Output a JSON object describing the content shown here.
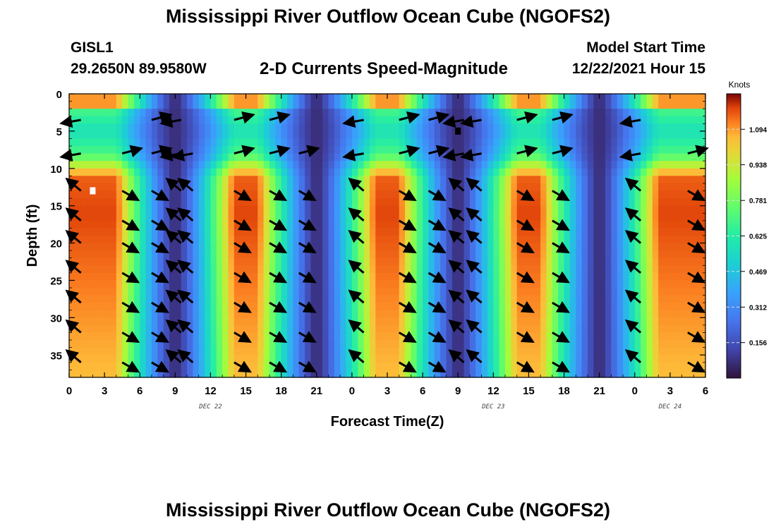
{
  "header": {
    "title": "Mississippi River Outflow Ocean Cube (NGOFS2)",
    "station": "GISL1",
    "coords": "29.2650N  89.9580W",
    "subtitle": "2-D Currents Speed-Magnitude",
    "start_label": "Model Start Time",
    "start_value": "12/22/2021 Hour 15"
  },
  "footer": {
    "title": "Mississippi River Outflow Ocean Cube (NGOFS2)"
  },
  "chart_data": {
    "type": "heatmap",
    "xlabel": "Forecast Time(Z)",
    "ylabel": "Depth (ft)",
    "x_range_hours": [
      0,
      54
    ],
    "y_range_ft": [
      0,
      38
    ],
    "y_reversed": true,
    "x_tick_labels": [
      "0",
      "3",
      "6",
      "9",
      "12",
      "15",
      "18",
      "21",
      "0",
      "3",
      "6",
      "9",
      "12",
      "15",
      "18",
      "21",
      "0",
      "3",
      "6"
    ],
    "y_ticks": [
      0,
      5,
      10,
      15,
      20,
      25,
      30,
      35
    ],
    "date_labels": [
      {
        "text": "DEC 22",
        "at_tick": 4
      },
      {
        "text": "DEC 23",
        "at_tick": 12
      },
      {
        "text": "DEC 24",
        "at_tick": 17
      }
    ],
    "colorbar": {
      "units": "Knots",
      "min": 0.0,
      "max": 1.25,
      "ticks": [
        0.156,
        0.312,
        0.469,
        0.625,
        0.781,
        0.938,
        1.094
      ],
      "tick_labels": [
        "0.156",
        "0.312",
        "0.469",
        "0.625",
        "0.781",
        "0.938",
        "1.094"
      ]
    },
    "slack_hours": [
      9,
      21,
      33,
      45
    ],
    "peak_hours": [
      2,
      15,
      27,
      39,
      52
    ],
    "markers": [
      {
        "hour": 2.0,
        "depth": 13.0,
        "color": "#ffffff"
      },
      {
        "hour": 33.0,
        "depth": 5.0,
        "color": "#000000"
      }
    ]
  }
}
